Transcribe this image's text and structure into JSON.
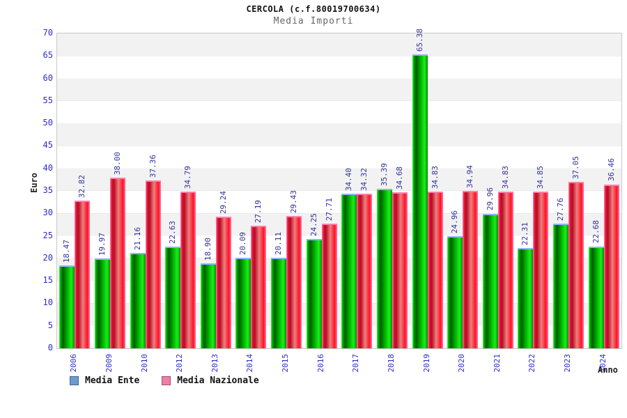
{
  "chart_data": {
    "type": "bar",
    "title": "CERCOLA (c.f.80019700634)",
    "subtitle": "Media Importi",
    "xlabel": "Anno",
    "ylabel": "Euro",
    "ylim": [
      0,
      70
    ],
    "ytick_step": 5,
    "grid": true,
    "legend_position": "bottom-left",
    "categories": [
      "2006",
      "2009",
      "2010",
      "2012",
      "2013",
      "2014",
      "2015",
      "2016",
      "2017",
      "2018",
      "2019",
      "2020",
      "2021",
      "2022",
      "2023",
      "2024"
    ],
    "series": [
      {
        "name": "Media Ente",
        "legend_color": "#6b9bd2",
        "bar_color_style": "green-cylinder-gradient",
        "values": [
          18.47,
          19.97,
          21.16,
          22.63,
          18.9,
          20.09,
          20.11,
          24.25,
          34.4,
          35.39,
          65.38,
          24.96,
          29.96,
          22.31,
          27.76,
          22.68
        ]
      },
      {
        "name": "Media Nazionale",
        "legend_color": "#ef7fa7",
        "bar_color_style": "red-cylinder-gradient",
        "values": [
          32.82,
          38.0,
          37.36,
          34.79,
          29.24,
          27.19,
          29.43,
          27.71,
          34.32,
          34.68,
          34.83,
          34.94,
          34.83,
          34.85,
          37.05,
          36.46
        ]
      }
    ],
    "value_label_decimals": 2,
    "colors": {
      "tick_label": "#2b2bd0",
      "value_label": "#32329b",
      "band_gray": "#f2f2f2",
      "band_white": "#ffffff",
      "plot_border": "#c9c9c9"
    }
  }
}
